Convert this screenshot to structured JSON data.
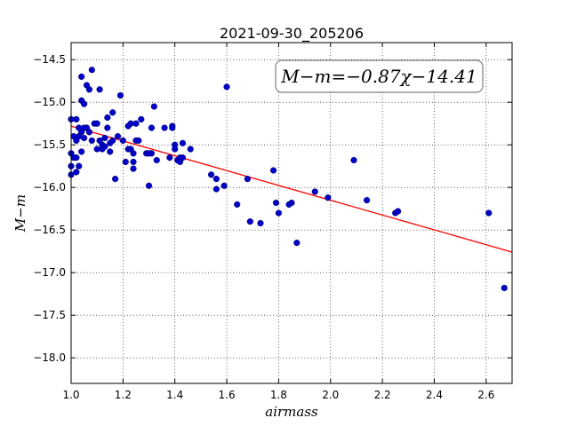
{
  "chart_data": {
    "type": "scatter",
    "title": "2021-09-30_205206",
    "xlabel": "airmass",
    "ylabel": "M−m",
    "xlim": [
      1.0,
      2.7
    ],
    "ylim": [
      -18.3,
      -14.3
    ],
    "y_inverted": true,
    "xticks": [
      1.0,
      1.2,
      1.4,
      1.6,
      1.8,
      2.0,
      2.2,
      2.4,
      2.6
    ],
    "xtick_labels": [
      "1.0",
      "1.2",
      "1.4",
      "1.6",
      "1.8",
      "2.0",
      "2.2",
      "2.4",
      "2.6"
    ],
    "yticks": [
      -14.5,
      -15.0,
      -15.5,
      -16.0,
      -16.5,
      -17.0,
      -17.5,
      -18.0
    ],
    "ytick_labels": [
      "−14.5",
      "−15.0",
      "−15.5",
      "−16.0",
      "−16.5",
      "−17.0",
      "−17.5",
      "−18.0"
    ],
    "grid": true,
    "annotation": "M−m=−0.87χ−14.41",
    "annotation_position": "top-right",
    "point_color": "#0000c8",
    "line_color": "#ff0000",
    "fit": {
      "slope": -0.87,
      "intercept": -14.41
    },
    "points": {
      "x": [
        1.0,
        1.0,
        1.0,
        1.0,
        1.01,
        1.01,
        1.02,
        1.02,
        1.02,
        1.02,
        1.03,
        1.03,
        1.03,
        1.04,
        1.04,
        1.04,
        1.04,
        1.05,
        1.05,
        1.05,
        1.06,
        1.06,
        1.07,
        1.07,
        1.08,
        1.08,
        1.09,
        1.1,
        1.1,
        1.11,
        1.11,
        1.12,
        1.12,
        1.13,
        1.13,
        1.14,
        1.14,
        1.15,
        1.15,
        1.16,
        1.16,
        1.17,
        1.18,
        1.19,
        1.2,
        1.21,
        1.22,
        1.22,
        1.23,
        1.23,
        1.24,
        1.24,
        1.24,
        1.25,
        1.25,
        1.26,
        1.27,
        1.29,
        1.3,
        1.3,
        1.31,
        1.31,
        1.32,
        1.33,
        1.36,
        1.38,
        1.39,
        1.39,
        1.4,
        1.4,
        1.41,
        1.42,
        1.42,
        1.43,
        1.43,
        1.46,
        1.54,
        1.56,
        1.56,
        1.59,
        1.6,
        1.64,
        1.68,
        1.69,
        1.73,
        1.78,
        1.79,
        1.8,
        1.84,
        1.85,
        1.87,
        1.94,
        1.99,
        2.09,
        2.14,
        2.25,
        2.26,
        2.61,
        2.67
      ],
      "y": [
        -15.6,
        -15.75,
        -15.85,
        -15.2,
        -15.4,
        -15.65,
        -15.2,
        -15.45,
        -15.65,
        -15.82,
        -15.3,
        -15.4,
        -15.75,
        -15.35,
        -15.58,
        -14.7,
        -14.98,
        -15.02,
        -15.42,
        -15.3,
        -14.8,
        -15.3,
        -15.35,
        -14.85,
        -15.45,
        -14.62,
        -15.25,
        -15.55,
        -15.25,
        -14.85,
        -15.45,
        -15.5,
        -15.55,
        -15.52,
        -15.42,
        -15.18,
        -15.3,
        -15.48,
        -15.58,
        -15.45,
        -15.12,
        -15.9,
        -15.4,
        -14.92,
        -15.45,
        -15.7,
        -15.28,
        -15.55,
        -15.55,
        -15.25,
        -15.6,
        -15.7,
        -15.78,
        -15.45,
        -15.25,
        -15.45,
        -15.2,
        -15.6,
        -15.6,
        -15.98,
        -15.6,
        -15.3,
        -15.05,
        -15.68,
        -15.3,
        -15.65,
        -15.28,
        -15.3,
        -15.5,
        -15.55,
        -15.68,
        -15.65,
        -15.7,
        -15.48,
        -15.65,
        -15.55,
        -15.85,
        -15.9,
        -16.02,
        -15.98,
        -14.82,
        -16.2,
        -15.9,
        -16.4,
        -16.42,
        -15.8,
        -16.18,
        -16.3,
        -16.2,
        -16.18,
        -16.65,
        -16.05,
        -16.12,
        -15.68,
        -16.15,
        -16.3,
        -16.28,
        -16.3,
        -17.18
      ]
    }
  }
}
